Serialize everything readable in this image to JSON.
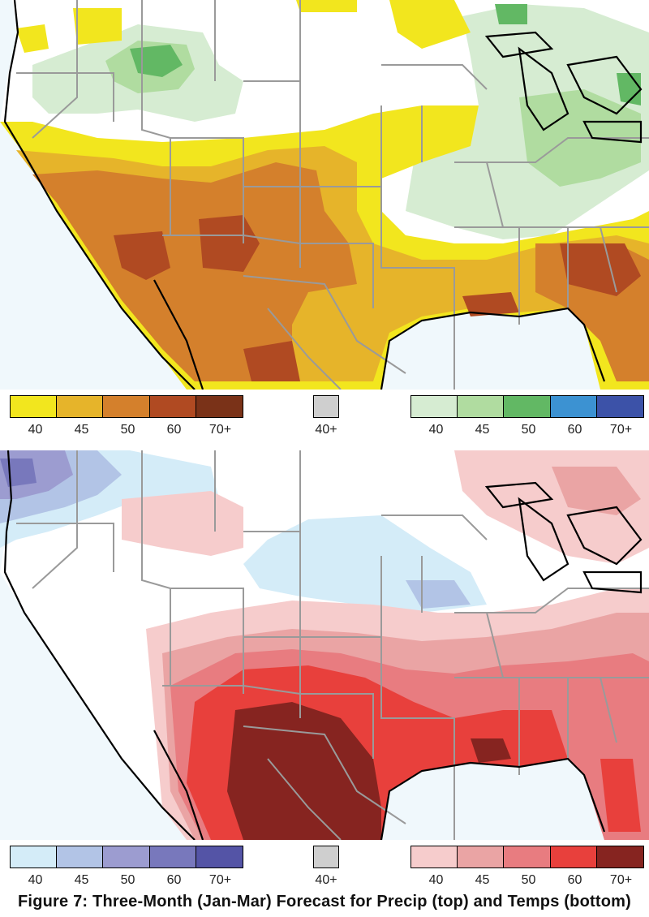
{
  "caption": "Figure 7: Three-Month (Jan-Mar) Forecast for Precip (top) and Temps (bottom)",
  "colors": {
    "background_sea": "#f0f8fc",
    "coast": "#000000",
    "state_lines": "#9a9a9a",
    "precip_below": [
      "#f2e61e",
      "#e6b42a",
      "#d4802c",
      "#b04a22",
      "#7a3218"
    ],
    "precip_above": [
      "#d6ecd2",
      "#b0dca0",
      "#62b864",
      "#3c92d2",
      "#3c52a8"
    ],
    "temp_below": [
      "#d4ecf8",
      "#b2c4e6",
      "#9c9cd0",
      "#7878bc",
      "#5454a6"
    ],
    "temp_above": [
      "#f6cccc",
      "#eaa4a4",
      "#e87c80",
      "#e8403c",
      "#862420"
    ],
    "equal_chances": "#cfcfcf"
  },
  "precip_legend": {
    "below_labels": [
      "40",
      "45",
      "50",
      "60",
      "70+"
    ],
    "neutral_label": "40+",
    "above_labels": [
      "40",
      "45",
      "50",
      "60",
      "70+"
    ]
  },
  "temp_legend": {
    "below_labels": [
      "40",
      "45",
      "50",
      "60",
      "70+"
    ],
    "neutral_label": "40+",
    "above_labels": [
      "40",
      "45",
      "50",
      "60",
      "70+"
    ]
  }
}
